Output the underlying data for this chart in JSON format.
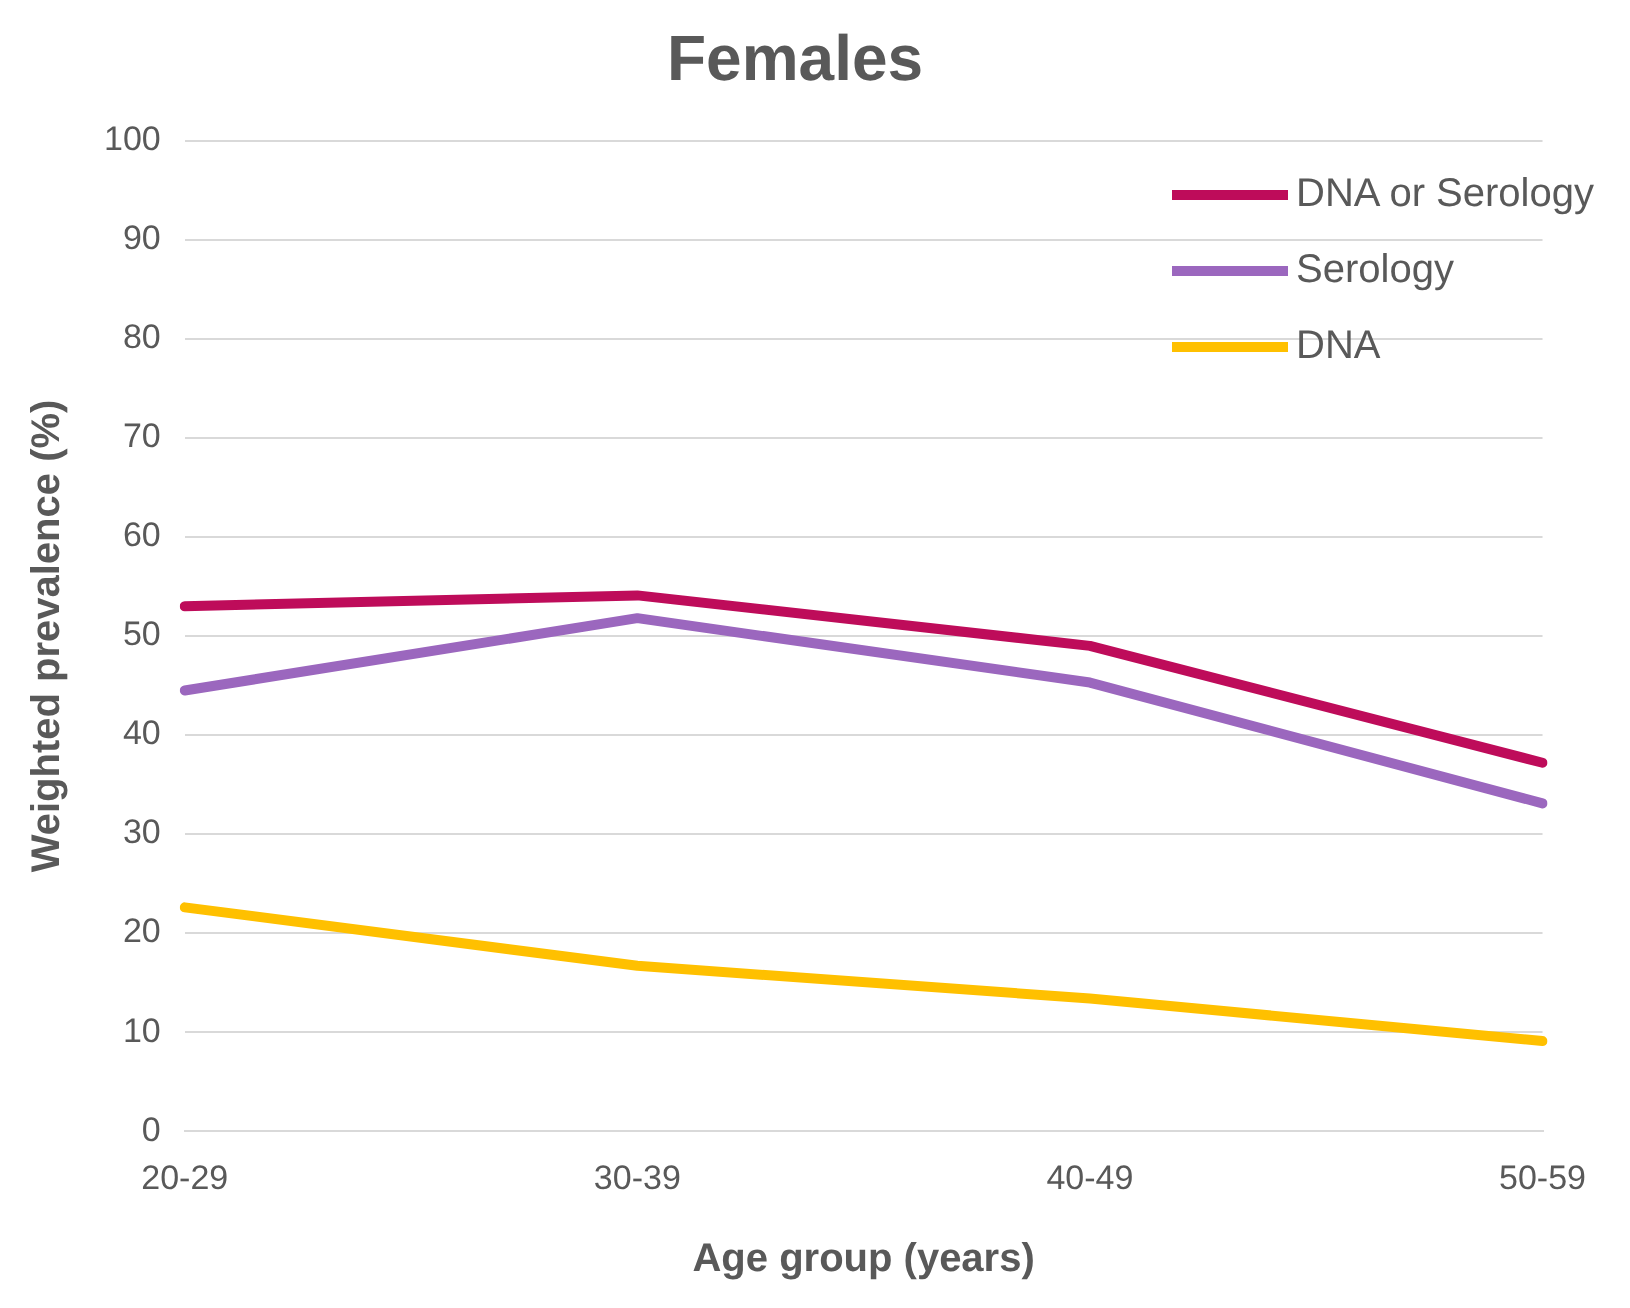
{
  "chart_data": {
    "type": "line",
    "title": "Females",
    "xlabel": "Age group (years)",
    "ylabel": "Weighted prevalence (%)",
    "categories": [
      "20-29",
      "30-39",
      "40-49",
      "50-59"
    ],
    "series": [
      {
        "name": "DNA or Serology",
        "color": "#be0c5a",
        "values": [
          53.0,
          54.1,
          49.0,
          37.2
        ]
      },
      {
        "name": "Serology",
        "color": "#9b67be",
        "values": [
          44.5,
          51.8,
          45.3,
          33.1
        ]
      },
      {
        "name": "DNA",
        "color": "#ffc000",
        "values": [
          22.6,
          16.7,
          13.4,
          9.1
        ]
      }
    ],
    "ylim": [
      0,
      100
    ],
    "yticks": [
      0,
      10,
      20,
      30,
      40,
      50,
      60,
      70,
      80,
      90,
      100
    ],
    "grid": "y",
    "legend": "top right",
    "marker": "none",
    "line_style": "solid"
  }
}
